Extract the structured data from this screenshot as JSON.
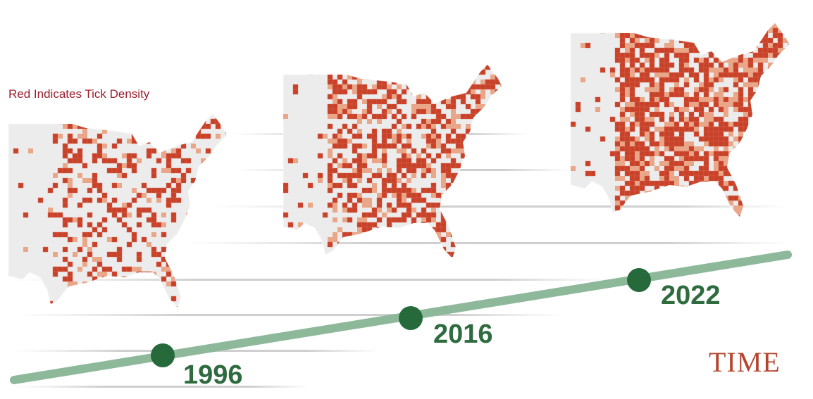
{
  "legend_note": "Red Indicates Tick Density",
  "timeline": [
    {
      "year": "1996"
    },
    {
      "year": "2016"
    },
    {
      "year": "2022"
    }
  ],
  "brand": "TIME"
}
